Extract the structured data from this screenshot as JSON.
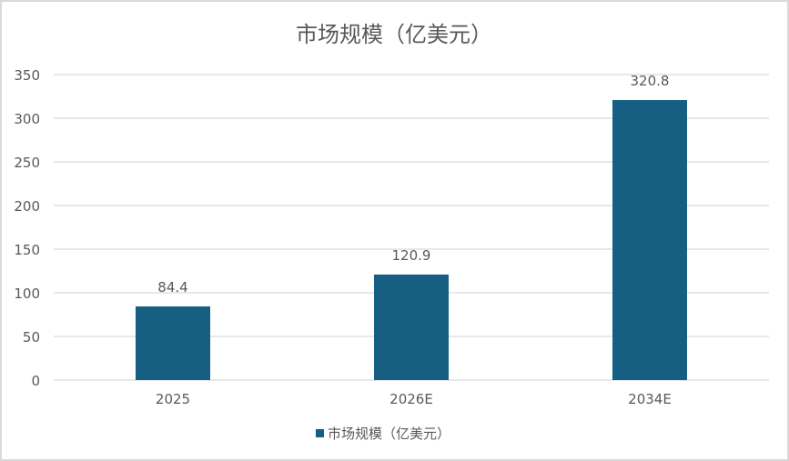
{
  "chart_data": {
    "type": "bar",
    "title": "市场规模（亿美元）",
    "categories": [
      "2025",
      "2026E",
      "2034E"
    ],
    "series": [
      {
        "name": "市场规模（亿美元）",
        "values": [
          84.4,
          120.9,
          320.8
        ],
        "color": "#165f82"
      }
    ],
    "data_labels": [
      "84.4",
      "120.9",
      "320.8"
    ],
    "yticks": [
      0,
      50,
      100,
      150,
      200,
      250,
      300,
      350
    ],
    "ylim": [
      0,
      350
    ],
    "grid": true,
    "legend": "bottom",
    "xlabel": "",
    "ylabel": ""
  }
}
